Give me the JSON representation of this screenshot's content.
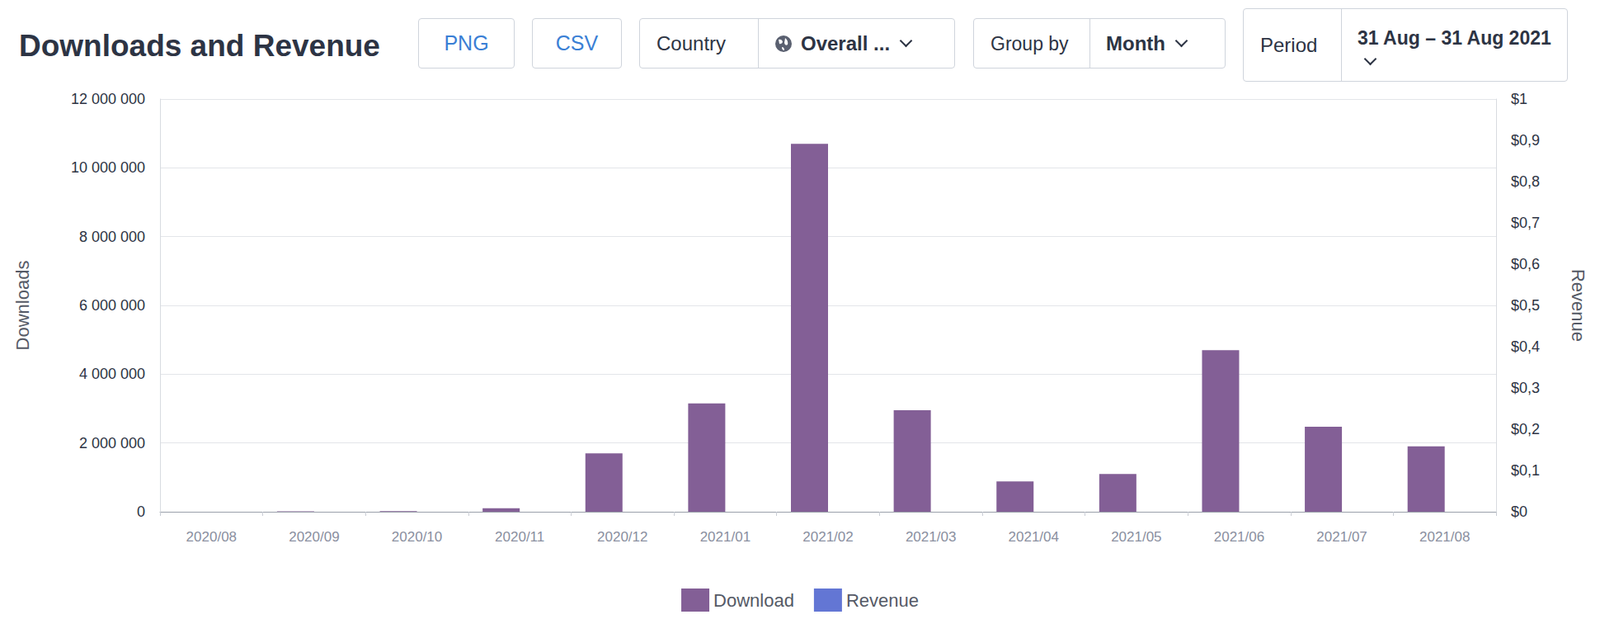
{
  "toolbar": {
    "buttons": [
      "PNG",
      "CSV"
    ],
    "filters": [
      {
        "label": "Country",
        "value": "Overall ..."
      },
      {
        "label": "Group by",
        "value": "Month"
      },
      {
        "label": "Period",
        "value": "31 Aug – 31 Aug 2021"
      }
    ]
  },
  "chart_data": {
    "type": "bar",
    "title": "Downloads and Revenue",
    "categories": [
      "2020/08",
      "2020/09",
      "2020/10",
      "2020/11",
      "2020/12",
      "2021/01",
      "2021/02",
      "2021/03",
      "2021/04",
      "2021/05",
      "2021/06",
      "2021/07",
      "2021/08"
    ],
    "series": [
      {
        "name": "Download",
        "color": "#835f96",
        "values": [
          0,
          10000,
          20000,
          100000,
          1700000,
          3150000,
          10700000,
          2950000,
          880000,
          1100000,
          4700000,
          2470000,
          1900000
        ]
      },
      {
        "name": "Revenue",
        "color": "#6376d4",
        "axis": "y2",
        "values": [
          0,
          0,
          0,
          0,
          0,
          0,
          0,
          0,
          0,
          0,
          0,
          0,
          0
        ]
      }
    ],
    "y_label": "Downloads",
    "y2_label": "Revenue",
    "ylim": [
      0,
      12000000
    ],
    "yticks": [
      0,
      {
        "value": 2000000,
        "label": "2 000 000"
      },
      {
        "value": 4000000,
        "label": "4 000 000"
      },
      {
        "value": 6000000,
        "label": "6 000 000"
      },
      {
        "value": 8000000,
        "label": "8 000 000"
      },
      {
        "value": 10000000,
        "label": "10 000 000"
      },
      {
        "value": 12000000,
        "label": "12 000 000"
      }
    ],
    "y2lim": [
      0,
      1
    ],
    "y2ticks": [
      {
        "value": 0,
        "label": "$0"
      },
      {
        "value": 0.1,
        "label": "$0,1"
      },
      {
        "value": 0.2,
        "label": "$0,2"
      },
      {
        "value": 0.3,
        "label": "$0,3"
      },
      {
        "value": 0.4,
        "label": "$0,4"
      },
      {
        "value": 0.5,
        "label": "$0,5"
      },
      {
        "value": 0.6,
        "label": "$0,6"
      },
      {
        "value": 0.7,
        "label": "$0,7"
      },
      {
        "value": 0.8,
        "label": "$0,8"
      },
      {
        "value": 0.9,
        "label": "$0,9"
      },
      {
        "value": 1,
        "label": "$1"
      }
    ],
    "grid": true,
    "legend": "bottom"
  }
}
